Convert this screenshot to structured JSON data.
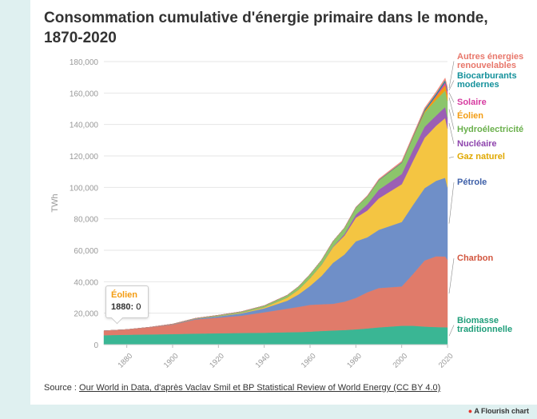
{
  "title": "Consommation cumulative d'énergie primaire dans le monde, 1870-2020",
  "source": {
    "prefix": "Source : ",
    "link": "Our World in Data, d'après Vaclav Smil et BP Statistical Review of World Energy (CC BY 4.0)"
  },
  "flourish_label": "A Flourish chart",
  "tooltip": {
    "series": "Éolien",
    "year": "1880:",
    "value": "0"
  },
  "chart_data": {
    "type": "area",
    "stacked": true,
    "ylabel": "TWh",
    "xlabel": "",
    "xlim": [
      1870,
      2020
    ],
    "ylim": [
      0,
      180000
    ],
    "y_ticks": [
      "0",
      "20,000",
      "40,000",
      "60,000",
      "80,000",
      "100,000",
      "120,000",
      "140,000",
      "160,000",
      "180,000"
    ],
    "x_ticks": [
      "1880",
      "1900",
      "1920",
      "1940",
      "1960",
      "1980",
      "2000",
      "2020"
    ],
    "grid": true,
    "x": [
      1870,
      1880,
      1890,
      1900,
      1910,
      1920,
      1930,
      1940,
      1950,
      1955,
      1960,
      1965,
      1970,
      1975,
      1980,
      1985,
      1990,
      1995,
      2000,
      2005,
      2010,
      2015,
      2019,
      2020
    ],
    "series": [
      {
        "name": "Biomasse traditionnelle",
        "color": "#3ab694",
        "values": [
          6000,
          6300,
          6500,
          6700,
          7000,
          7200,
          7400,
          7600,
          7900,
          8000,
          8300,
          8700,
          9000,
          9300,
          9700,
          10300,
          11000,
          11500,
          12000,
          12000,
          11500,
          11200,
          11100,
          11000
        ]
      },
      {
        "name": "Charbon",
        "color": "#e07b6a",
        "values": [
          2800,
          3300,
          4500,
          6000,
          9000,
          10000,
          11000,
          13000,
          15000,
          16000,
          17000,
          17000,
          17000,
          18000,
          20000,
          23000,
          25000,
          25000,
          25000,
          33000,
          42000,
          45000,
          45000,
          43000
        ]
      },
      {
        "name": "Pétrole",
        "color": "#6f8fc8",
        "values": [
          0,
          0,
          100,
          200,
          400,
          800,
          1500,
          2500,
          5000,
          8000,
          12000,
          18000,
          26000,
          30000,
          36000,
          35000,
          37000,
          39000,
          41000,
          44000,
          46000,
          48000,
          50000,
          46000
        ]
      },
      {
        "name": "Gaz naturel",
        "color": "#f4c542",
        "values": [
          0,
          0,
          0,
          0,
          100,
          200,
          400,
          700,
          2000,
          3000,
          5000,
          7000,
          10000,
          12000,
          15000,
          17000,
          20000,
          22000,
          24000,
          28000,
          32000,
          35000,
          38000,
          37500
        ]
      },
      {
        "name": "Nucléaire",
        "color": "#9b5fb5",
        "values": [
          0,
          0,
          0,
          0,
          0,
          0,
          0,
          0,
          0,
          0,
          10,
          100,
          300,
          1000,
          2000,
          4000,
          5500,
          6000,
          6500,
          7000,
          7000,
          6500,
          7000,
          6800
        ]
      },
      {
        "name": "Hydroélectricité",
        "color": "#8cc56b",
        "values": [
          0,
          0,
          0,
          200,
          300,
          500,
          700,
          1000,
          1500,
          2000,
          2500,
          3000,
          3500,
          4000,
          4500,
          5000,
          6000,
          6500,
          7000,
          8000,
          9000,
          10000,
          10500,
          10800
        ]
      },
      {
        "name": "Éolien",
        "color": "#f39c12",
        "values": [
          0,
          0,
          0,
          0,
          0,
          0,
          0,
          0,
          0,
          0,
          0,
          0,
          0,
          0,
          0,
          0,
          10,
          30,
          80,
          300,
          900,
          2100,
          3600,
          4000
        ]
      },
      {
        "name": "Solaire",
        "color": "#e0479e",
        "values": [
          0,
          0,
          0,
          0,
          0,
          0,
          0,
          0,
          0,
          0,
          0,
          0,
          0,
          0,
          0,
          0,
          0,
          0,
          5,
          20,
          100,
          650,
          1800,
          2200
        ]
      },
      {
        "name": "Biocarburants modernes",
        "color": "#14919b",
        "values": [
          0,
          0,
          0,
          0,
          0,
          0,
          0,
          0,
          0,
          0,
          0,
          0,
          0,
          0,
          100,
          150,
          250,
          300,
          300,
          400,
          1000,
          1100,
          1200,
          1100
        ]
      },
      {
        "name": "Autres énergies renouvelables",
        "color": "#f08a7e",
        "values": [
          0,
          0,
          0,
          0,
          0,
          0,
          0,
          0,
          0,
          0,
          0,
          0,
          0,
          100,
          200,
          400,
          600,
          700,
          800,
          900,
          1000,
          1200,
          1400,
          1500
        ]
      }
    ],
    "labels": [
      {
        "series": "Autres énergies renouvelables",
        "lines": [
          "Autres énergies",
          "renouvelables"
        ],
        "color": "#e8776b"
      },
      {
        "series": "Biocarburants modernes",
        "lines": [
          "Biocarburants",
          "modernes"
        ],
        "color": "#14919b"
      },
      {
        "series": "Solaire",
        "lines": [
          "Solaire"
        ],
        "color": "#d63aa0"
      },
      {
        "series": "Éolien",
        "lines": [
          "Éolien"
        ],
        "color": "#f39c12"
      },
      {
        "series": "Hydroélectricité",
        "lines": [
          "Hydroélectricité"
        ],
        "color": "#6ab04c"
      },
      {
        "series": "Nucléaire",
        "lines": [
          "Nucléaire"
        ],
        "color": "#8e44ad"
      },
      {
        "series": "Gaz naturel",
        "lines": [
          "Gaz naturel"
        ],
        "color": "#e0a800"
      },
      {
        "series": "Pétrole",
        "lines": [
          "Pétrole"
        ],
        "color": "#3d5fa8"
      },
      {
        "series": "Charbon",
        "lines": [
          "Charbon"
        ],
        "color": "#d2563f"
      },
      {
        "series": "Biomasse traditionnelle",
        "lines": [
          "Biomasse",
          "traditionnelle"
        ],
        "color": "#1f9e7a"
      }
    ]
  }
}
